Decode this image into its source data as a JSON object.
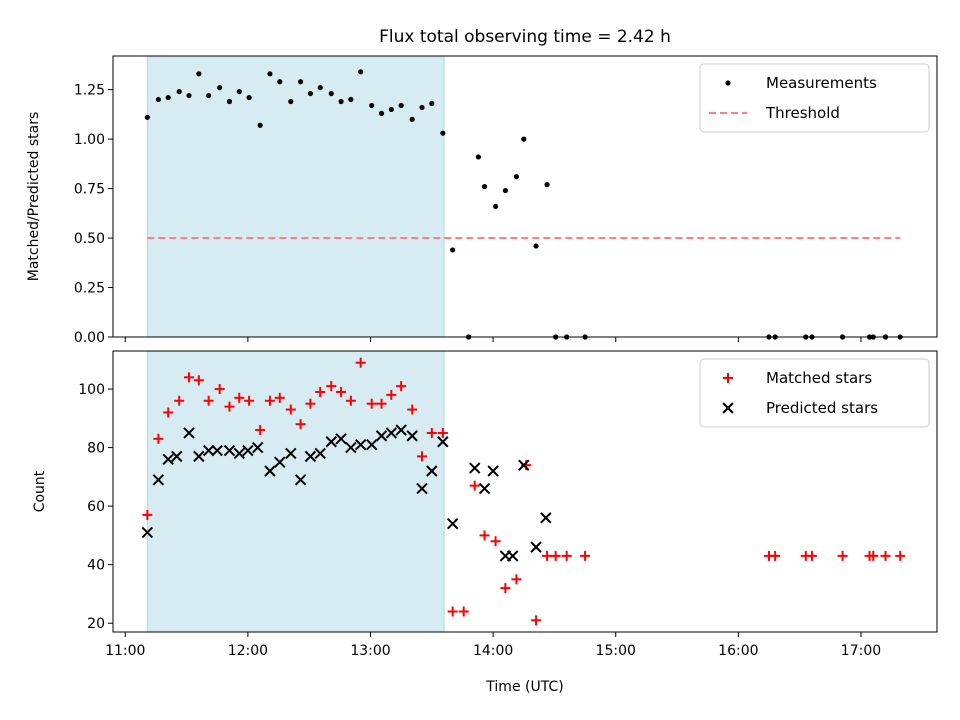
{
  "title": "Flux total observing time = 2.42 h",
  "xlabel": "Time (UTC)",
  "shade_color": "#add8e6",
  "chart_data": [
    {
      "type": "scatter",
      "ylabel": "Matched/Predicted stars",
      "xlim": [
        10.9,
        17.62
      ],
      "ylim": [
        0,
        1.42
      ],
      "shaded_region": [
        11.18,
        13.6
      ],
      "yticks": [
        0,
        0.25,
        0.5,
        0.75,
        1.0,
        1.25
      ],
      "ytick_labels": [
        "0.00",
        "0.25",
        "0.50",
        "0.75",
        "1.00",
        "1.25"
      ],
      "legend": {
        "placement": "top-right",
        "entries": [
          "Measurements",
          "Threshold"
        ]
      },
      "series": [
        {
          "name": "Measurements",
          "color": "#000000",
          "x": [
            11.18,
            11.27,
            11.35,
            11.44,
            11.52,
            11.6,
            11.68,
            11.77,
            11.85,
            11.93,
            12.01,
            12.1,
            12.18,
            12.26,
            12.35,
            12.43,
            12.51,
            12.59,
            12.68,
            12.76,
            12.84,
            12.92,
            13.01,
            13.09,
            13.17,
            13.25,
            13.34,
            13.42,
            13.5,
            13.59,
            13.67,
            13.8,
            13.88,
            13.93,
            14.02,
            14.1,
            14.19,
            14.25,
            14.35,
            14.44,
            14.51,
            14.6,
            14.75,
            16.25,
            16.3,
            16.55,
            16.6,
            16.85,
            17.07,
            17.1,
            17.2,
            17.32
          ],
          "y": [
            1.11,
            1.2,
            1.21,
            1.24,
            1.22,
            1.33,
            1.22,
            1.26,
            1.19,
            1.24,
            1.21,
            1.07,
            1.33,
            1.29,
            1.19,
            1.29,
            1.23,
            1.26,
            1.23,
            1.19,
            1.2,
            1.34,
            1.17,
            1.13,
            1.15,
            1.17,
            1.1,
            1.16,
            1.18,
            1.03,
            0.44,
            0.0,
            0.91,
            0.76,
            0.66,
            0.74,
            0.81,
            1.0,
            0.46,
            0.77,
            0.0,
            0.0,
            0.0,
            0.0,
            0.0,
            0.0,
            0.0,
            0.0,
            0.0,
            0.0,
            0.0,
            0.0
          ]
        },
        {
          "name": "Threshold",
          "color": "#ff7f7f",
          "x": [
            11.18,
            17.32
          ],
          "y": [
            0.5,
            0.5
          ]
        }
      ]
    },
    {
      "type": "scatter",
      "ylabel": "Count",
      "xlim": [
        10.9,
        17.62
      ],
      "ylim": [
        17,
        113
      ],
      "shaded_region": [
        11.18,
        13.6
      ],
      "yticks": [
        20,
        40,
        60,
        80,
        100
      ],
      "ytick_labels": [
        "20",
        "40",
        "60",
        "80",
        "100"
      ],
      "xticks": [
        11,
        12,
        13,
        14,
        15,
        16,
        17
      ],
      "xtick_labels": [
        "11:00",
        "12:00",
        "13:00",
        "14:00",
        "15:00",
        "16:00",
        "17:00"
      ],
      "legend": {
        "placement": "top-right",
        "entries": [
          "Matched stars",
          "Predicted stars"
        ]
      },
      "series": [
        {
          "name": "Matched stars",
          "color": "#ff0000",
          "marker": "+",
          "x": [
            11.18,
            11.27,
            11.35,
            11.44,
            11.52,
            11.6,
            11.68,
            11.77,
            11.85,
            11.93,
            12.01,
            12.1,
            12.18,
            12.26,
            12.35,
            12.43,
            12.51,
            12.59,
            12.68,
            12.76,
            12.84,
            12.92,
            13.01,
            13.09,
            13.17,
            13.25,
            13.34,
            13.42,
            13.5,
            13.59,
            13.67,
            13.76,
            13.85,
            13.93,
            14.02,
            14.1,
            14.19,
            14.27,
            14.35,
            14.44,
            14.51,
            14.6,
            14.75,
            16.25,
            16.3,
            16.55,
            16.6,
            16.85,
            17.07,
            17.1,
            17.2,
            17.32
          ],
          "y": [
            57,
            83,
            92,
            96,
            104,
            103,
            96,
            100,
            94,
            97,
            96,
            86,
            96,
            97,
            93,
            88,
            95,
            99,
            101,
            99,
            96,
            109,
            95,
            95,
            98,
            101,
            93,
            77,
            85,
            85,
            24,
            24,
            67,
            50,
            48,
            32,
            35,
            74,
            21,
            43,
            43,
            43,
            43,
            43,
            43,
            43,
            43,
            43,
            43,
            43,
            43,
            43
          ]
        },
        {
          "name": "Predicted stars",
          "color": "#000000",
          "marker": "x",
          "x": [
            11.18,
            11.27,
            11.35,
            11.42,
            11.52,
            11.6,
            11.68,
            11.75,
            11.85,
            11.93,
            12.0,
            12.08,
            12.18,
            12.26,
            12.35,
            12.43,
            12.51,
            12.59,
            12.68,
            12.76,
            12.84,
            12.92,
            13.01,
            13.09,
            13.17,
            13.25,
            13.34,
            13.42,
            13.5,
            13.59,
            13.67,
            13.85,
            13.93,
            14.0,
            14.1,
            14.16,
            14.25,
            14.35,
            14.43
          ],
          "y": [
            51,
            69,
            76,
            77,
            85,
            77,
            79,
            79,
            79,
            78,
            79,
            80,
            72,
            75,
            78,
            69,
            77,
            78,
            82,
            83,
            80,
            81,
            81,
            84,
            85,
            86,
            84,
            66,
            72,
            82,
            54,
            73,
            66,
            72,
            43,
            43,
            74,
            46,
            56
          ]
        }
      ]
    }
  ]
}
